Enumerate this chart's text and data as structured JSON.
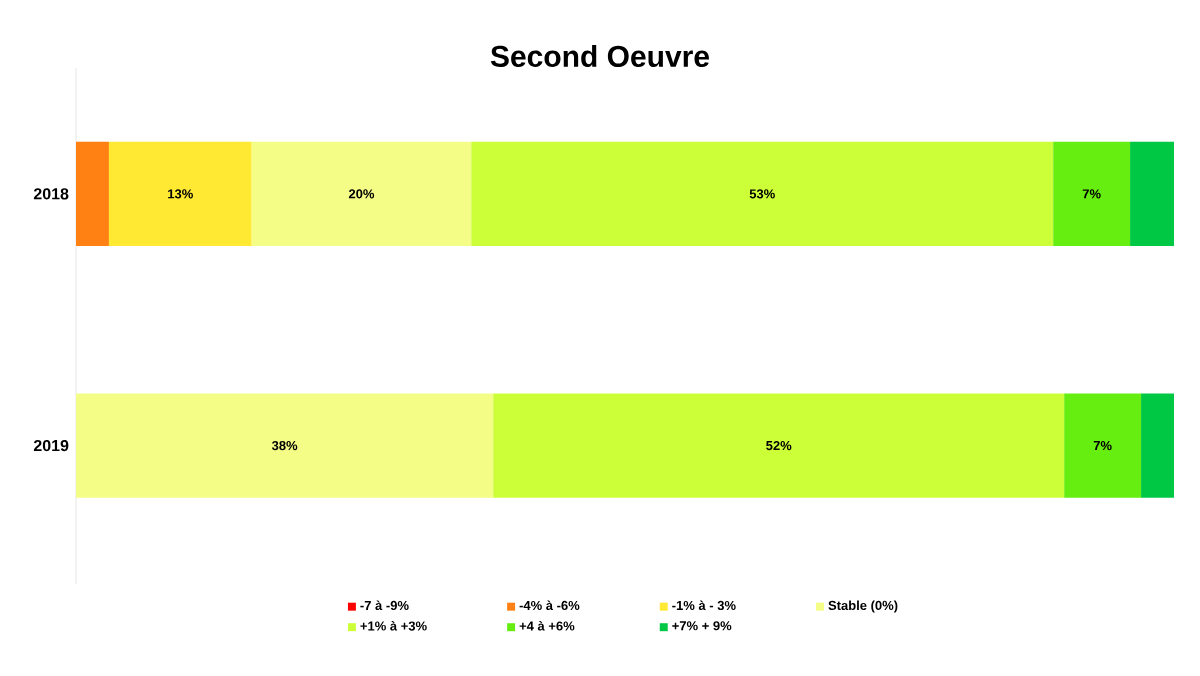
{
  "chart_data": {
    "type": "bar",
    "orientation": "horizontal",
    "stacked": true,
    "title": "Second Oeuvre",
    "categories": [
      "2018",
      "2019"
    ],
    "legend": "bottom",
    "series": [
      {
        "name": "-7 à -9%",
        "color": "#ff0000",
        "values": [
          null,
          null
        ]
      },
      {
        "name": "-4% à -6%",
        "color": "#ff8113",
        "values": [
          3,
          null
        ]
      },
      {
        "name": "-1% à - 3%",
        "color": "#ffe933",
        "values": [
          13,
          null
        ],
        "value_labels": [
          "13%",
          null
        ]
      },
      {
        "name": "Stable (0%)",
        "color": "#f4fd85",
        "values": [
          20,
          38
        ],
        "value_labels": [
          "20%",
          "38%"
        ]
      },
      {
        "name": "+1% à +3%",
        "color": "#ccff38",
        "values": [
          53,
          52
        ],
        "value_labels": [
          "53%",
          "52%"
        ]
      },
      {
        "name": "+4 à +6%",
        "color": "#66ee11",
        "values": [
          7,
          7
        ],
        "value_labels": [
          "7%",
          "7%"
        ]
      },
      {
        "name": "+7% + 9%",
        "color": "#00c844",
        "values": [
          4,
          3
        ]
      }
    ]
  }
}
